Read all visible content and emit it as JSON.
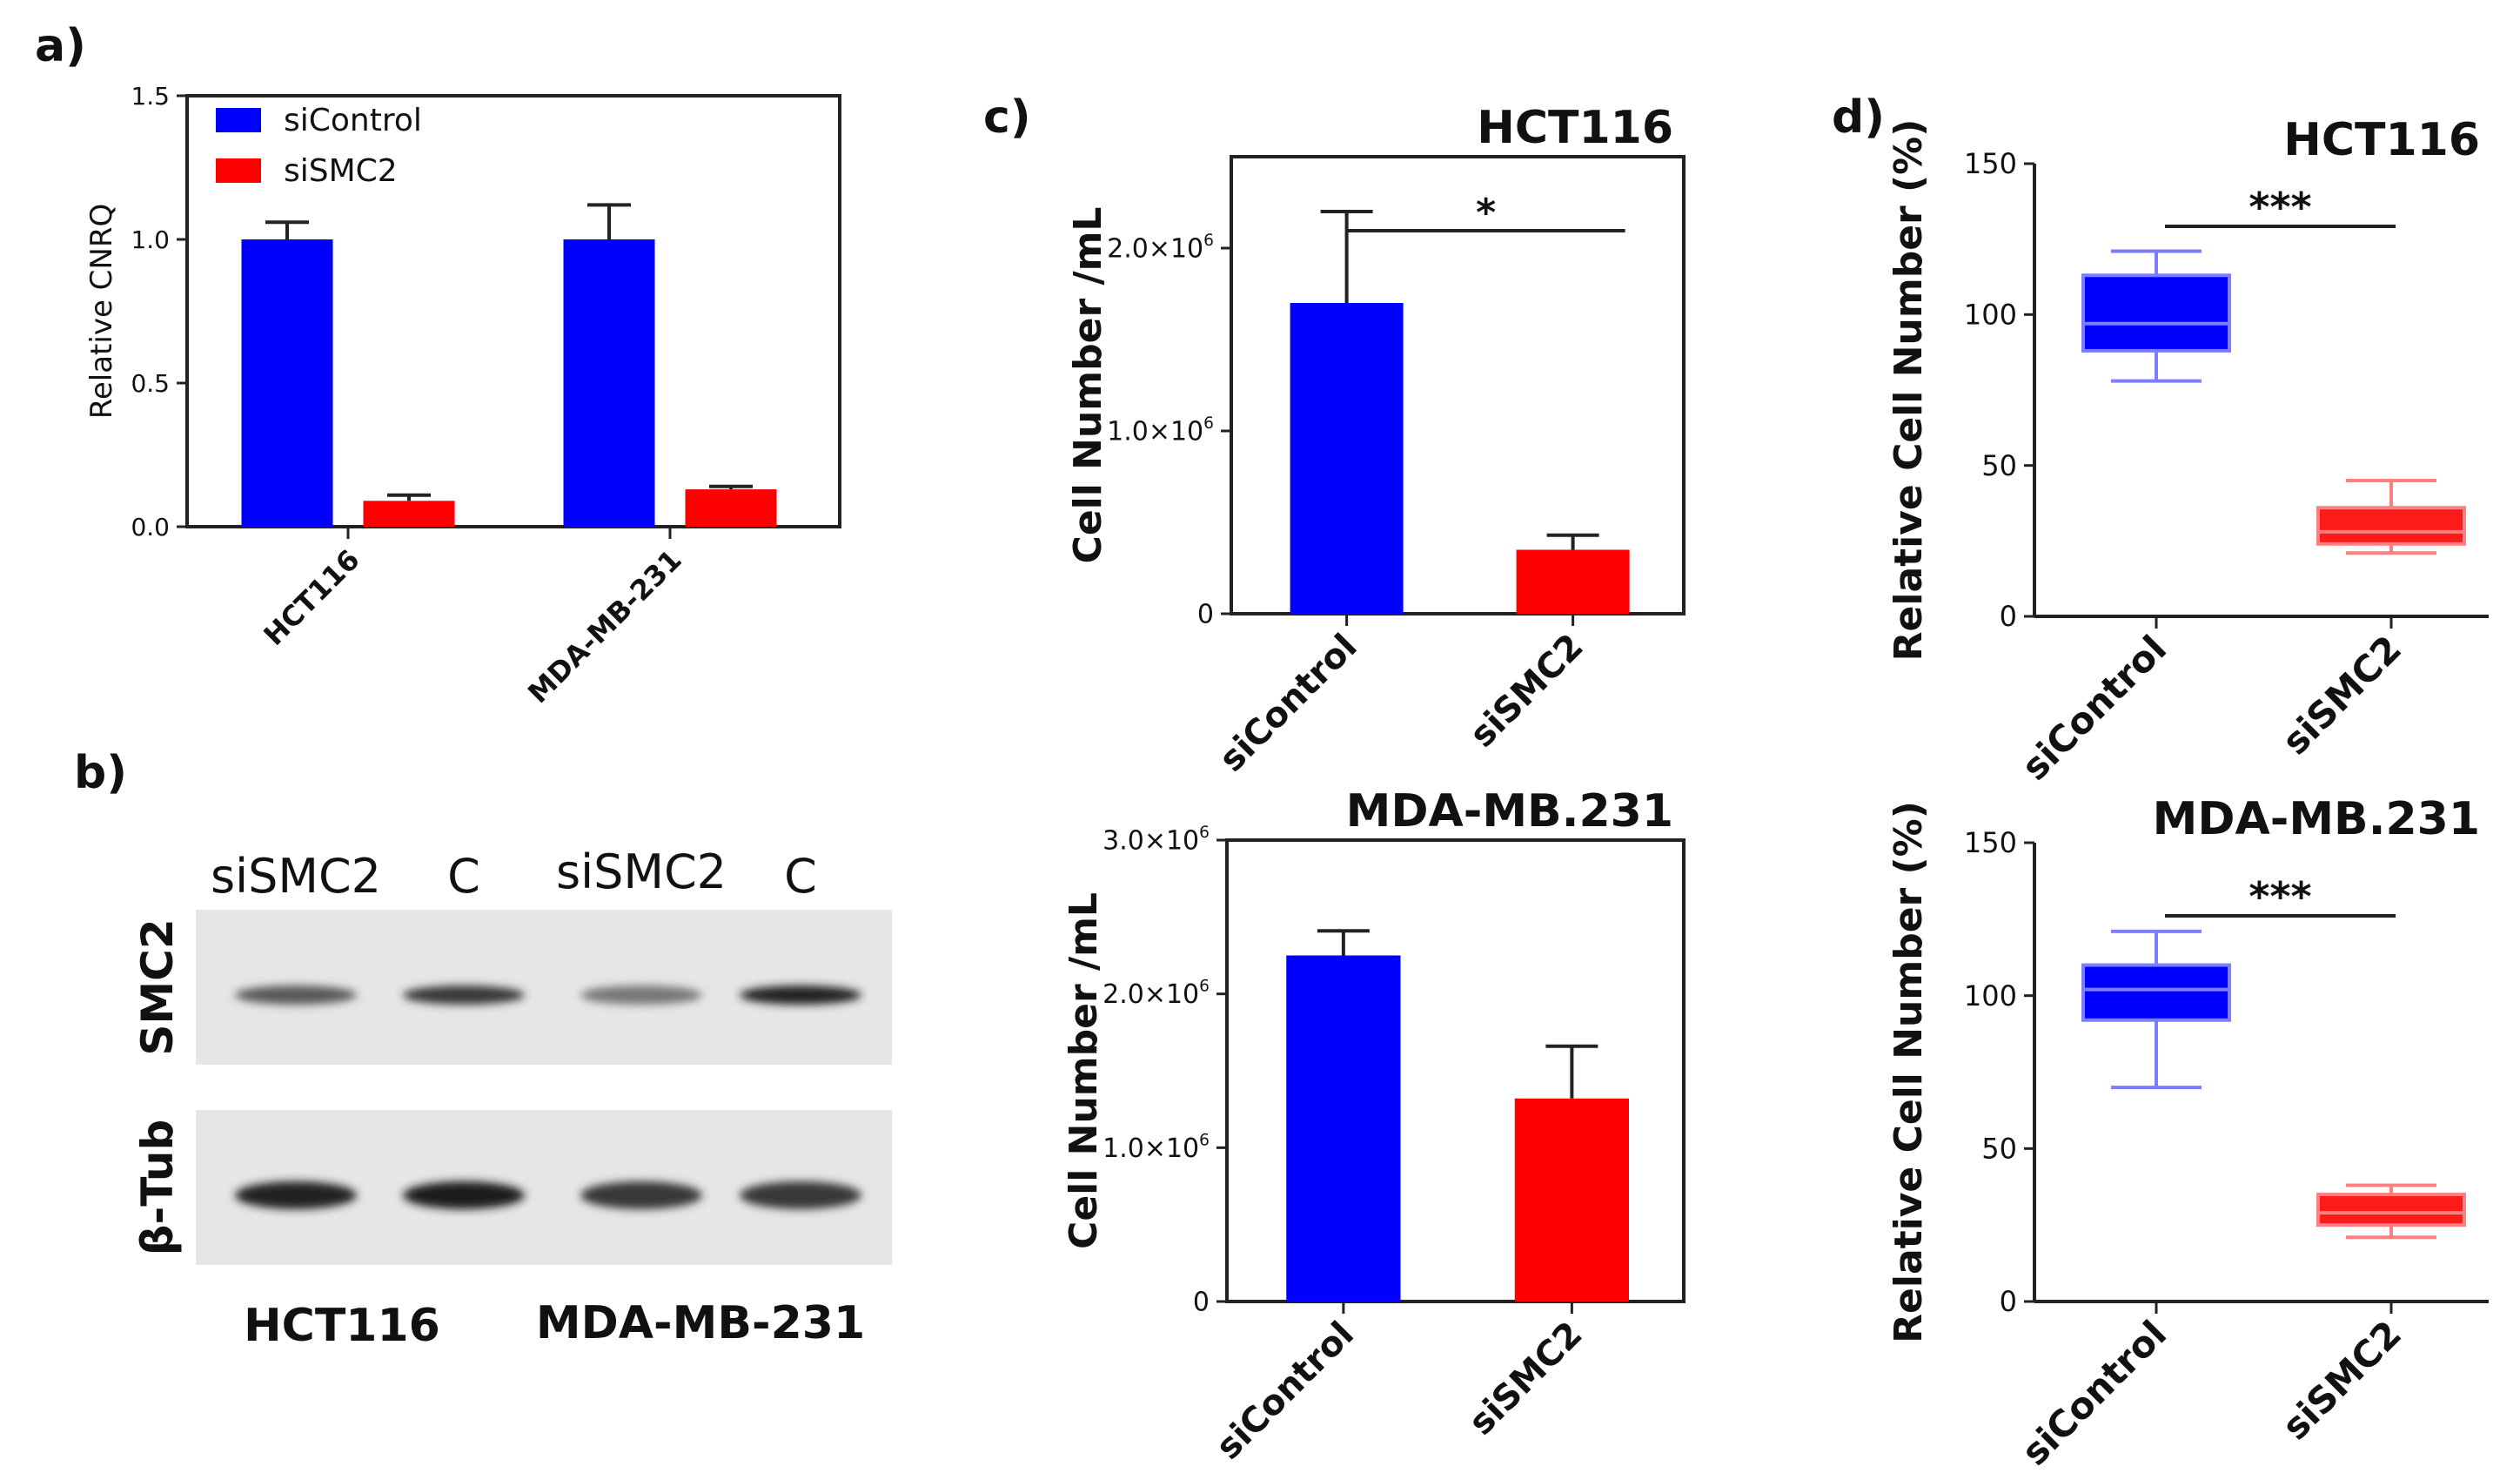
{
  "colors": {
    "control": "#0000ff",
    "sismc2": "#ff0000",
    "axis": "#222222",
    "box_control": "#0000ff",
    "box_control_edge": "#7d7dff",
    "box_sismc2": "#ff1a1a",
    "box_sismc2_edge": "#ff8080"
  },
  "panel_labels": {
    "a": "a)",
    "b": "b)",
    "c": "c)",
    "d": "d)"
  },
  "chart_data": [
    {
      "id": "a",
      "type": "bar",
      "ylabel": "Relative CNRQ",
      "categories": [
        "HCT116",
        "MDA-MB-231"
      ],
      "ylim": [
        0,
        1.5
      ],
      "yticks": [
        0.0,
        0.5,
        1.0,
        1.5
      ],
      "ytick_labels": [
        "0.0",
        "0.5",
        "1.0",
        "1.5"
      ],
      "legend": "top-left",
      "series": [
        {
          "name": "siControl",
          "values": [
            1.0,
            1.0
          ],
          "errors": [
            0.06,
            0.12
          ]
        },
        {
          "name": "siSMC2",
          "values": [
            0.09,
            0.13
          ],
          "errors": [
            0.02,
            0.01
          ]
        }
      ]
    },
    {
      "id": "c_top",
      "type": "bar",
      "title": "HCT116",
      "ylabel": "Cell Number /mL",
      "categories": [
        "siControl",
        "siSMC2"
      ],
      "values": [
        1700000,
        350000
      ],
      "errors": [
        500000,
        80000
      ],
      "ylim": [
        0,
        2500000
      ],
      "yticks": [
        0,
        1000000,
        2000000
      ],
      "ytick_labels": [
        {
          "m": "0",
          "e": ""
        },
        {
          "m": "1.0×10",
          "e": "6"
        },
        {
          "m": "2.0×10",
          "e": "6"
        }
      ],
      "significance": "*"
    },
    {
      "id": "c_bottom",
      "type": "bar",
      "title": "MDA-MB.231",
      "ylabel": "Cell Number /mL",
      "categories": [
        "siControl",
        "siSMC2"
      ],
      "values": [
        2250000,
        1320000
      ],
      "errors": [
        160000,
        340000
      ],
      "ylim": [
        0,
        3000000
      ],
      "yticks": [
        0,
        1000000,
        2000000,
        3000000
      ],
      "ytick_labels": [
        {
          "m": "0",
          "e": ""
        },
        {
          "m": "1.0×10",
          "e": "6"
        },
        {
          "m": "2.0×10",
          "e": "6"
        },
        {
          "m": "3.0×10",
          "e": "6"
        }
      ]
    },
    {
      "id": "d_top",
      "type": "box",
      "title": "HCT116",
      "ylabel": "Relative Cell Number (%)",
      "categories": [
        "siControl",
        "siSMC2"
      ],
      "boxes": [
        {
          "min": 78,
          "q1": 88,
          "median": 97,
          "q3": 113,
          "max": 121
        },
        {
          "min": 21,
          "q1": 24,
          "median": 28,
          "q3": 36,
          "max": 45
        }
      ],
      "ylim": [
        0,
        150
      ],
      "yticks": [
        0,
        50,
        100,
        150
      ],
      "ytick_labels": [
        "0",
        "50",
        "100",
        "150"
      ],
      "significance": "***"
    },
    {
      "id": "d_bottom",
      "type": "box",
      "title": "MDA-MB.231",
      "ylabel": "Relative Cell Number (%)",
      "categories": [
        "siControl",
        "siSMC2"
      ],
      "boxes": [
        {
          "min": 70,
          "q1": 92,
          "median": 102,
          "q3": 110,
          "max": 121
        },
        {
          "min": 21,
          "q1": 25,
          "median": 29,
          "q3": 35,
          "max": 38
        }
      ],
      "ylim": [
        0,
        150
      ],
      "yticks": [
        0,
        50,
        100,
        150
      ],
      "ytick_labels": [
        "0",
        "50",
        "100",
        "150"
      ],
      "significance": "***"
    }
  ],
  "western_blot": {
    "lane_labels": [
      "siSMC2",
      "C",
      "siSMC2",
      "C"
    ],
    "rows": [
      {
        "label": "SMC2",
        "band_intensity": [
          0.7,
          0.85,
          0.55,
          0.95
        ]
      },
      {
        "label": "β-Tub",
        "band_intensity": [
          0.95,
          0.98,
          0.85,
          0.85
        ]
      }
    ],
    "cell_lines": [
      "HCT116",
      "MDA-MB-231"
    ]
  }
}
